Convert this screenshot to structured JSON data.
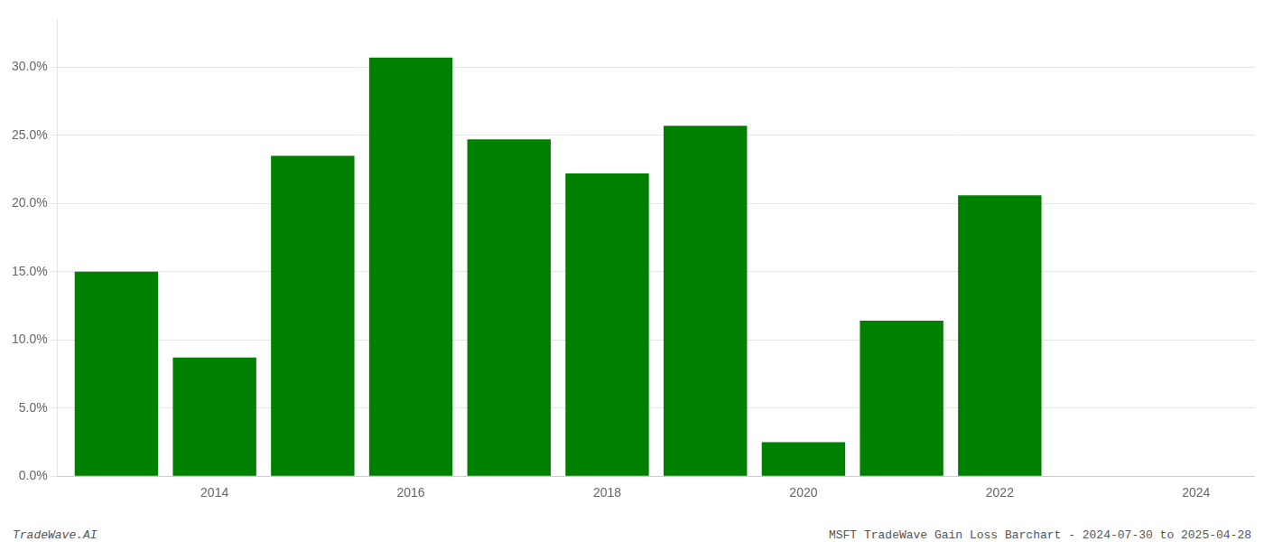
{
  "chart_data": {
    "type": "bar",
    "x": [
      2013,
      2014,
      2015,
      2016,
      2017,
      2018,
      2019,
      2020,
      2021,
      2022
    ],
    "values": [
      0.15,
      0.087,
      0.235,
      0.307,
      0.247,
      0.222,
      0.257,
      0.025,
      0.114,
      0.206
    ],
    "color": "#008000",
    "xlim": [
      2012.4,
      2024.6
    ],
    "xticks": [
      2014,
      2016,
      2018,
      2020,
      2022,
      2024
    ],
    "ylim": [
      0,
      0.335
    ],
    "yticks": [
      {
        "value": 0.0,
        "label": "0.0%"
      },
      {
        "value": 0.05,
        "label": "5.0%"
      },
      {
        "value": 0.1,
        "label": "10.0%"
      },
      {
        "value": 0.15,
        "label": "15.0%"
      },
      {
        "value": 0.2,
        "label": "20.0%"
      },
      {
        "value": 0.25,
        "label": "25.0%"
      },
      {
        "value": 0.3,
        "label": "30.0%"
      }
    ],
    "grid": "y",
    "annotations": [
      "TradeWave.AI",
      "MSFT TradeWave Gain Loss Barchart - 2024-07-30 to 2025-04-28"
    ]
  }
}
